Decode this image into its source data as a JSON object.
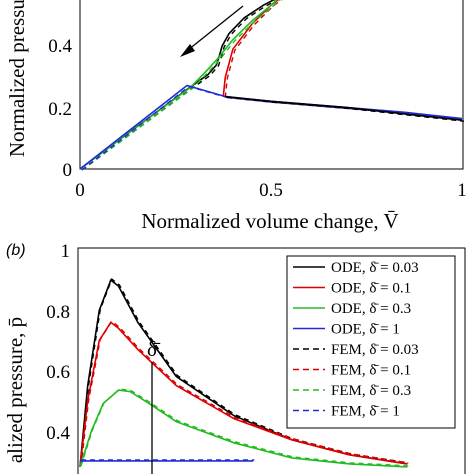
{
  "chart_data": [
    {
      "type": "line",
      "panel": "a",
      "xlabel": "Normalized volume change, V̄",
      "ylabel": "Normalized pressure",
      "xlim": [
        0,
        1
      ],
      "ylim": [
        0,
        0.65
      ],
      "xticks": [
        "0",
        "0.5",
        "1"
      ],
      "yticks": [
        "0",
        "0.2",
        "0.4"
      ],
      "grid": false,
      "series": [
        {
          "color": "#000000",
          "x": [
            0,
            0.283,
            0.335,
            0.357,
            0.365,
            0.372,
            0.39,
            0.43,
            0.48,
            0.52,
            0.55
          ],
          "y": [
            0,
            0.255,
            0.3,
            0.33,
            0.36,
            0.39,
            0.43,
            0.48,
            0.52,
            0.545,
            0.57
          ]
        },
        {
          "color": "#dd0000",
          "x": [
            0.375,
            0.38,
            0.4,
            0.45,
            0.5,
            0.55
          ],
          "y": [
            0.23,
            0.29,
            0.38,
            0.46,
            0.52,
            0.565
          ]
        },
        {
          "color": "#22bb22",
          "x": [
            0,
            0.29,
            0.33,
            0.36,
            0.4,
            0.45,
            0.5,
            0.54
          ],
          "y": [
            0,
            0.26,
            0.31,
            0.35,
            0.41,
            0.47,
            0.52,
            0.565
          ]
        },
        {
          "color": "#1f2bd6",
          "x": [
            0,
            0.28,
            0.38,
            0.5,
            0.7,
            0.85,
            1.0
          ],
          "y": [
            0,
            0.265,
            0.23,
            0.215,
            0.195,
            0.18,
            0.16
          ]
        },
        {
          "color": "#000000",
          "x": [
            0.38,
            0.5,
            0.7,
            0.85,
            1.0
          ],
          "y": [
            0.23,
            0.215,
            0.195,
            0.175,
            0.155
          ]
        }
      ],
      "annotation": "arrow pointing toward decreasing volume"
    },
    {
      "type": "line",
      "panel": "b",
      "panel_label": "(b)",
      "ylabel": "alized pressure, p̄",
      "ylim": [
        0.3,
        1.0
      ],
      "yticks": [
        "1",
        "0.8",
        "0.6",
        "0.4"
      ],
      "delta_label": "δ̄",
      "legend_position": "top-right",
      "legend": [
        {
          "label": "ODE, δ̄ = 0.03",
          "color": "#000000",
          "style": "solid"
        },
        {
          "label": "ODE, δ̄ = 0.1",
          "color": "#dd0000",
          "style": "solid"
        },
        {
          "label": "ODE, δ̄ = 0.3",
          "color": "#22bb22",
          "style": "solid"
        },
        {
          "label": "ODE, δ̄ = 1",
          "color": "#1f2bd6",
          "style": "solid"
        },
        {
          "label": "FEM, δ̄ = 0.03",
          "color": "#000000",
          "style": "dashed"
        },
        {
          "label": "FEM, δ̄ = 0.1",
          "color": "#dd0000",
          "style": "dashed"
        },
        {
          "label": "FEM, δ̄ = 0.3",
          "color": "#22bb22",
          "style": "dashed"
        },
        {
          "label": "FEM, δ̄ = 1",
          "color": "#1f2bd6",
          "style": "dashed"
        }
      ],
      "series": [
        {
          "color": "#000000",
          "t": [
            0,
            0.02,
            0.05,
            0.08,
            0.1,
            0.15,
            0.25,
            0.4,
            0.55,
            0.7,
            0.85
          ],
          "y": [
            0.28,
            0.55,
            0.8,
            0.9,
            0.88,
            0.76,
            0.58,
            0.45,
            0.37,
            0.32,
            0.29
          ]
        },
        {
          "color": "#dd0000",
          "t": [
            0,
            0.02,
            0.05,
            0.08,
            0.1,
            0.15,
            0.25,
            0.4,
            0.55,
            0.7,
            0.85
          ],
          "y": [
            0.28,
            0.5,
            0.7,
            0.76,
            0.74,
            0.67,
            0.55,
            0.44,
            0.37,
            0.32,
            0.29
          ]
        },
        {
          "color": "#22bb22",
          "t": [
            0,
            0.03,
            0.06,
            0.1,
            0.13,
            0.18,
            0.25,
            0.4,
            0.55,
            0.7,
            0.85
          ],
          "y": [
            0.28,
            0.4,
            0.49,
            0.535,
            0.53,
            0.49,
            0.43,
            0.36,
            0.31,
            0.29,
            0.28
          ]
        },
        {
          "color": "#1f2bd6",
          "t": [
            0,
            0.25,
            0.45
          ],
          "y": [
            0.3,
            0.3,
            0.3
          ]
        }
      ]
    }
  ]
}
